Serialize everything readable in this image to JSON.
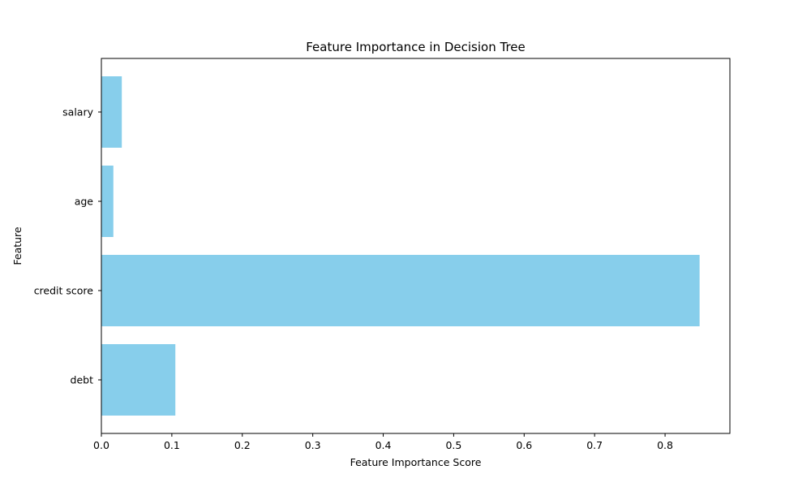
{
  "chart_data": {
    "type": "bar",
    "orientation": "horizontal",
    "title": "Feature Importance in Decision Tree",
    "xlabel": "Feature Importance Score",
    "ylabel": "Feature",
    "categories": [
      "debt",
      "credit score",
      "age",
      "salary"
    ],
    "values": [
      0.105,
      0.849,
      0.017,
      0.029
    ],
    "xlim": [
      0,
      0.892
    ],
    "xticks": [
      0.0,
      0.1,
      0.2,
      0.3,
      0.4,
      0.5,
      0.6,
      0.7,
      0.8
    ],
    "xtick_labels": [
      "0.0",
      "0.1",
      "0.2",
      "0.3",
      "0.4",
      "0.5",
      "0.6",
      "0.7",
      "0.8"
    ],
    "grid": false,
    "bar_color": "#87ceeb"
  }
}
